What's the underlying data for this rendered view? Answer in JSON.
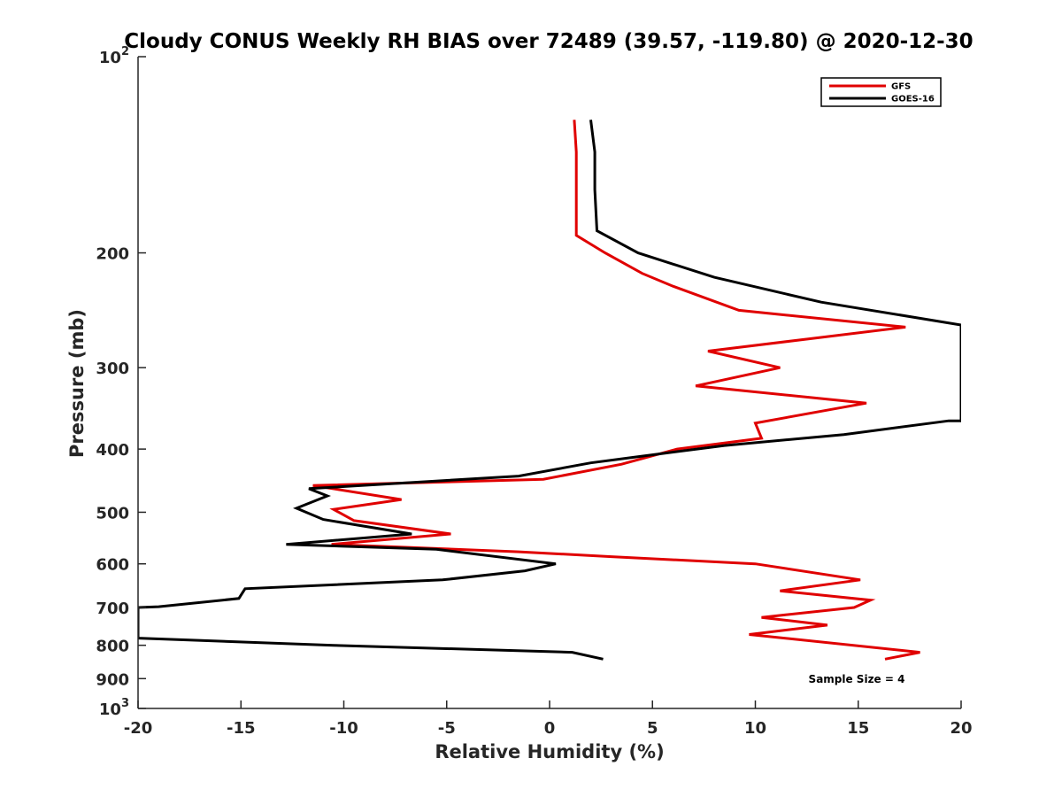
{
  "chart_data": {
    "type": "line",
    "title": "Cloudy CONUS Weekly RH BIAS over 72489 (39.57, -119.80) @ 2020-12-30",
    "xlabel": "Relative Humidity (%)",
    "ylabel": "Pressure (mb)",
    "xlim": [
      -20,
      20
    ],
    "ylim": [
      100,
      1000
    ],
    "y_scale": "log",
    "y_reversed": true,
    "x_ticks": [
      "-20",
      "-15",
      "-10",
      "-5",
      "0",
      "5",
      "10",
      "15",
      "20"
    ],
    "x_tick_values": [
      -20,
      -15,
      -10,
      -5,
      0,
      5,
      10,
      15,
      20
    ],
    "y_ticks": [
      {
        "value": 100,
        "base": "10",
        "exp": "2"
      },
      {
        "value": 200,
        "label": "200"
      },
      {
        "value": 300,
        "label": "300"
      },
      {
        "value": 400,
        "label": "400"
      },
      {
        "value": 500,
        "label": "500"
      },
      {
        "value": 600,
        "label": "600"
      },
      {
        "value": 700,
        "label": "700"
      },
      {
        "value": 800,
        "label": "800"
      },
      {
        "value": 900,
        "label": "900"
      },
      {
        "value": 1000,
        "base": "10",
        "exp": "3"
      }
    ],
    "legend_position": "top-right",
    "annotation": "Sample Size = 4",
    "grid": false,
    "series": [
      {
        "name": "GFS",
        "color": "#e00000",
        "points": [
          [
            1.2,
            125
          ],
          [
            1.3,
            140
          ],
          [
            1.3,
            160
          ],
          [
            1.3,
            188
          ],
          [
            2.7,
            200
          ],
          [
            4.5,
            215
          ],
          [
            6.0,
            225
          ],
          [
            9.2,
            245
          ],
          [
            17.3,
            260
          ],
          [
            7.7,
            283
          ],
          [
            11.2,
            300
          ],
          [
            7.1,
            320
          ],
          [
            15.4,
            340
          ],
          [
            10.0,
            365
          ],
          [
            10.3,
            385
          ],
          [
            6.2,
            400
          ],
          [
            3.5,
            422
          ],
          [
            -0.3,
            445
          ],
          [
            -11.5,
            455
          ],
          [
            -7.2,
            478
          ],
          [
            -10.5,
            495
          ],
          [
            -9.5,
            515
          ],
          [
            -4.8,
            540
          ],
          [
            -10.6,
            560
          ],
          [
            -1.5,
            575
          ],
          [
            3.0,
            585
          ],
          [
            10.0,
            600
          ],
          [
            15.1,
            635
          ],
          [
            11.2,
            660
          ],
          [
            15.6,
            682
          ],
          [
            14.8,
            700
          ],
          [
            10.3,
            725
          ],
          [
            13.5,
            745
          ],
          [
            9.7,
            770
          ],
          [
            18.0,
            820
          ],
          [
            16.3,
            840
          ]
        ]
      },
      {
        "name": "GOES-16",
        "color": "#000000",
        "points": [
          [
            2.0,
            125
          ],
          [
            2.2,
            140
          ],
          [
            2.2,
            160
          ],
          [
            2.3,
            185
          ],
          [
            4.3,
            200
          ],
          [
            8.0,
            218
          ],
          [
            13.2,
            238
          ],
          [
            20.0,
            258
          ],
          [
            20.0,
            362
          ],
          [
            19.4,
            362
          ],
          [
            14.3,
            380
          ],
          [
            8.5,
            395
          ],
          [
            4.0,
            412
          ],
          [
            2.0,
            420
          ],
          [
            -1.5,
            440
          ],
          [
            -11.7,
            460
          ],
          [
            -10.8,
            472
          ],
          [
            -12.3,
            493
          ],
          [
            -11.0,
            513
          ],
          [
            -6.7,
            540
          ],
          [
            -12.8,
            560
          ],
          [
            -5.5,
            570
          ],
          [
            0.3,
            600
          ],
          [
            -1.2,
            615
          ],
          [
            -5.2,
            635
          ],
          [
            -14.8,
            655
          ],
          [
            -15.1,
            678
          ],
          [
            -19.0,
            698
          ],
          [
            -20.0,
            700
          ],
          [
            -20.0,
            780
          ],
          [
            -10.5,
            800
          ],
          [
            1.1,
            820
          ],
          [
            2.6,
            840
          ]
        ]
      }
    ]
  }
}
